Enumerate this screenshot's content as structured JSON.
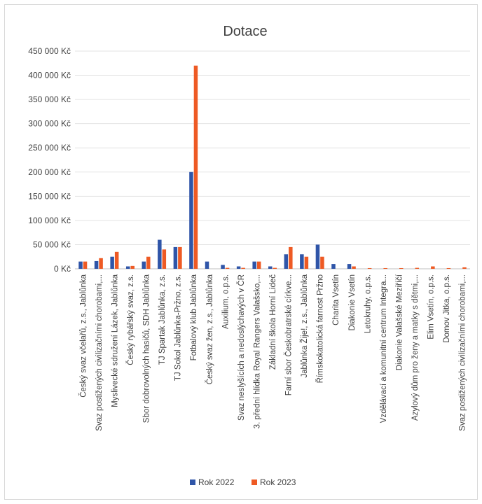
{
  "chart_data": {
    "type": "bar",
    "title": "Dotace",
    "xlabel": "",
    "ylabel": "",
    "ylim": [
      0,
      450000
    ],
    "yticks": [
      0,
      50000,
      100000,
      150000,
      200000,
      250000,
      300000,
      350000,
      400000,
      450000
    ],
    "ytick_labels": [
      "0 Kč",
      "50 000 Kč",
      "100 000 Kč",
      "150 000 Kč",
      "200 000 Kč",
      "250 000 Kč",
      "300 000 Kč",
      "350 000 Kč",
      "400 000 Kč",
      "450 000 Kč"
    ],
    "grid": true,
    "legend_position": "bottom",
    "categories": [
      "Český svaz včelařů, z.s., Jablůnka",
      "Svaz postižených civilizačními chorobami,...",
      "Myslivecké sdružení Lázek, Jablůnka",
      "Český rybářský svaz, z.s.",
      "Sbor dobrovolných hasičů, SDH Jablůnka",
      "TJ Spartak Jablůnka, z.s.",
      "TJ Sokol Jablůnka-Pržno, z.s.",
      "Fotbalový klub Jablůnka",
      "Český svaz žen, z.s., Jablůnka",
      "Auxilium, o.p.s.",
      "Svaz neslyšících a nedoslýchavých v ČR",
      "3. přední hlídka Royal Rangers Valašsko,...",
      "Základní škola Horní Lideč",
      "Farní sbor Českobratrské církve...",
      "Jablůnka Žije!, z.s., Jablůnka",
      "Římskokatolická farnost Pržno",
      "Charita Vsetín",
      "Diakonie Vsetín",
      "Letokruhy, o.p.s.",
      "Vzdělávací a komunitní centrum Integra...",
      "Diakonie Valašské Meziříčí",
      "Azylový dům pro ženy a matky s dětmi,...",
      "Elim Vsetín, o.p.s.",
      "Domov Jitka, o.p.s.",
      "Svaz postižených civilizačními chorobami,..."
    ],
    "series": [
      {
        "name": "Rok 2022",
        "color": "#2f55a8",
        "values": [
          15000,
          16000,
          25000,
          5000,
          15000,
          60000,
          45000,
          200000,
          15000,
          8000,
          5000,
          15000,
          5000,
          30000,
          30000,
          50000,
          10000,
          10000,
          0,
          0,
          0,
          0,
          0,
          0,
          0
        ]
      },
      {
        "name": "Rok 2023",
        "color": "#ee5a24",
        "values": [
          15000,
          22000,
          35000,
          6000,
          25000,
          40000,
          45000,
          420000,
          0,
          2000,
          2000,
          15000,
          2000,
          45000,
          25000,
          25000,
          0,
          5000,
          1500,
          1500,
          1500,
          2000,
          5000,
          1500,
          3000
        ]
      }
    ]
  }
}
